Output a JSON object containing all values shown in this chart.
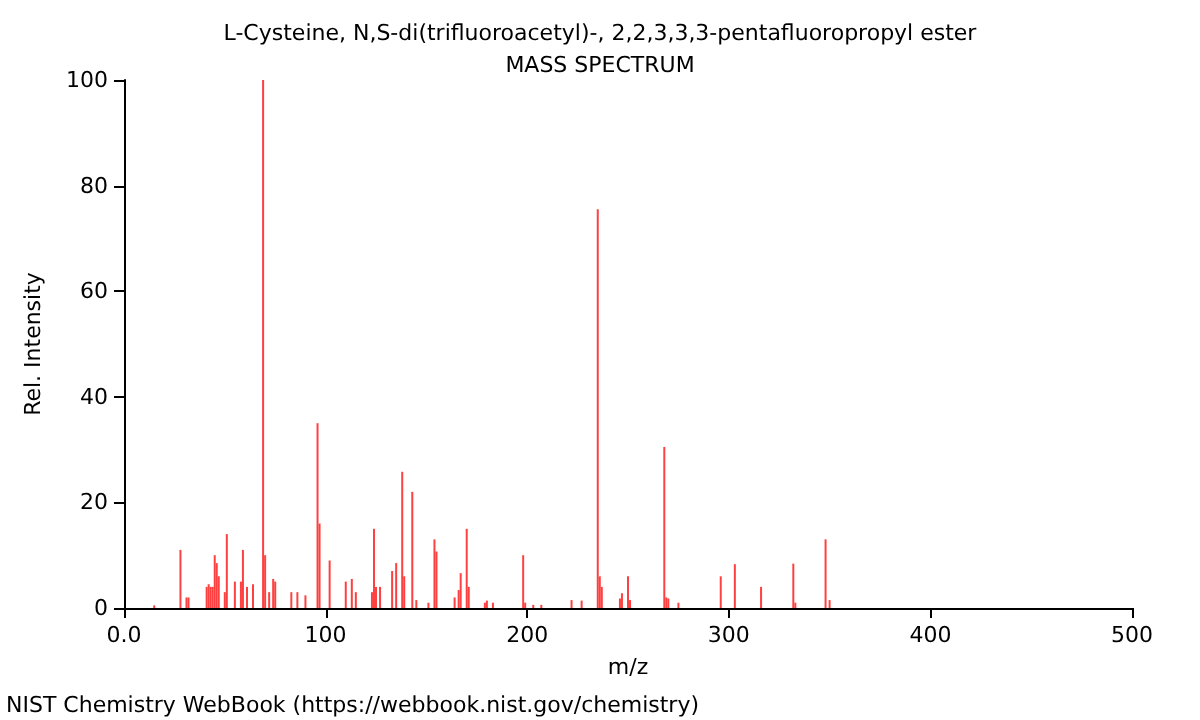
{
  "chart_data": {
    "type": "bar",
    "title": "L-Cysteine, N,S-di(trifluoroacetyl)-, 2,2,3,3,3-pentafluoropropyl ester",
    "subtitle": "MASS SPECTRUM",
    "xlabel": "m/z",
    "ylabel": "Rel. Intensity",
    "annotations": [
      "NIST Chemistry WebBook (https://webbook.nist.gov/chemistry)"
    ],
    "x": [
      15,
      28,
      31,
      32,
      41,
      42,
      43,
      44,
      45,
      46,
      47,
      50,
      51,
      55,
      58,
      59,
      61,
      64,
      69,
      70,
      72,
      74,
      75,
      83,
      86,
      90,
      96,
      97,
      102,
      110,
      113,
      115,
      123,
      124,
      125,
      127,
      133,
      135,
      138,
      139,
      143,
      145,
      151,
      154,
      155,
      164,
      166,
      167,
      170,
      171,
      179,
      180,
      183,
      198,
      199,
      203,
      207,
      222,
      227,
      235,
      236,
      237,
      246,
      247,
      250,
      251,
      268,
      269,
      270,
      275,
      296,
      303,
      316,
      332,
      333,
      348,
      350
    ],
    "values": [
      0.5,
      11,
      2,
      2,
      4,
      4.5,
      4,
      4,
      10,
      8.5,
      6,
      3,
      14,
      5,
      5,
      11,
      4,
      4.5,
      100,
      10,
      3,
      5.5,
      5,
      3,
      3,
      2.4,
      35,
      16,
      9,
      5,
      5.5,
      3,
      3,
      15,
      4,
      4,
      7,
      8.5,
      25.8,
      6,
      22,
      1.5,
      1,
      13,
      10.7,
      2,
      3.4,
      6.6,
      15,
      4,
      1,
      1.4,
      1,
      10,
      1,
      0.6,
      0.6,
      1.5,
      1.4,
      75.5,
      6,
      4,
      1.8,
      2.8,
      6,
      1.5,
      30.5,
      2,
      1.8,
      1,
      6,
      8.3,
      4,
      8.4,
      1,
      13,
      1.5
    ],
    "color": "#ff4040",
    "xlim": [
      0,
      500
    ],
    "xticks": [
      {
        "value": 0,
        "label": "0.0"
      },
      100,
      200,
      300,
      400,
      500
    ],
    "ylim": [
      0,
      100
    ],
    "yticks": [
      0,
      20,
      40,
      60,
      80,
      100
    ],
    "grid": false
  }
}
